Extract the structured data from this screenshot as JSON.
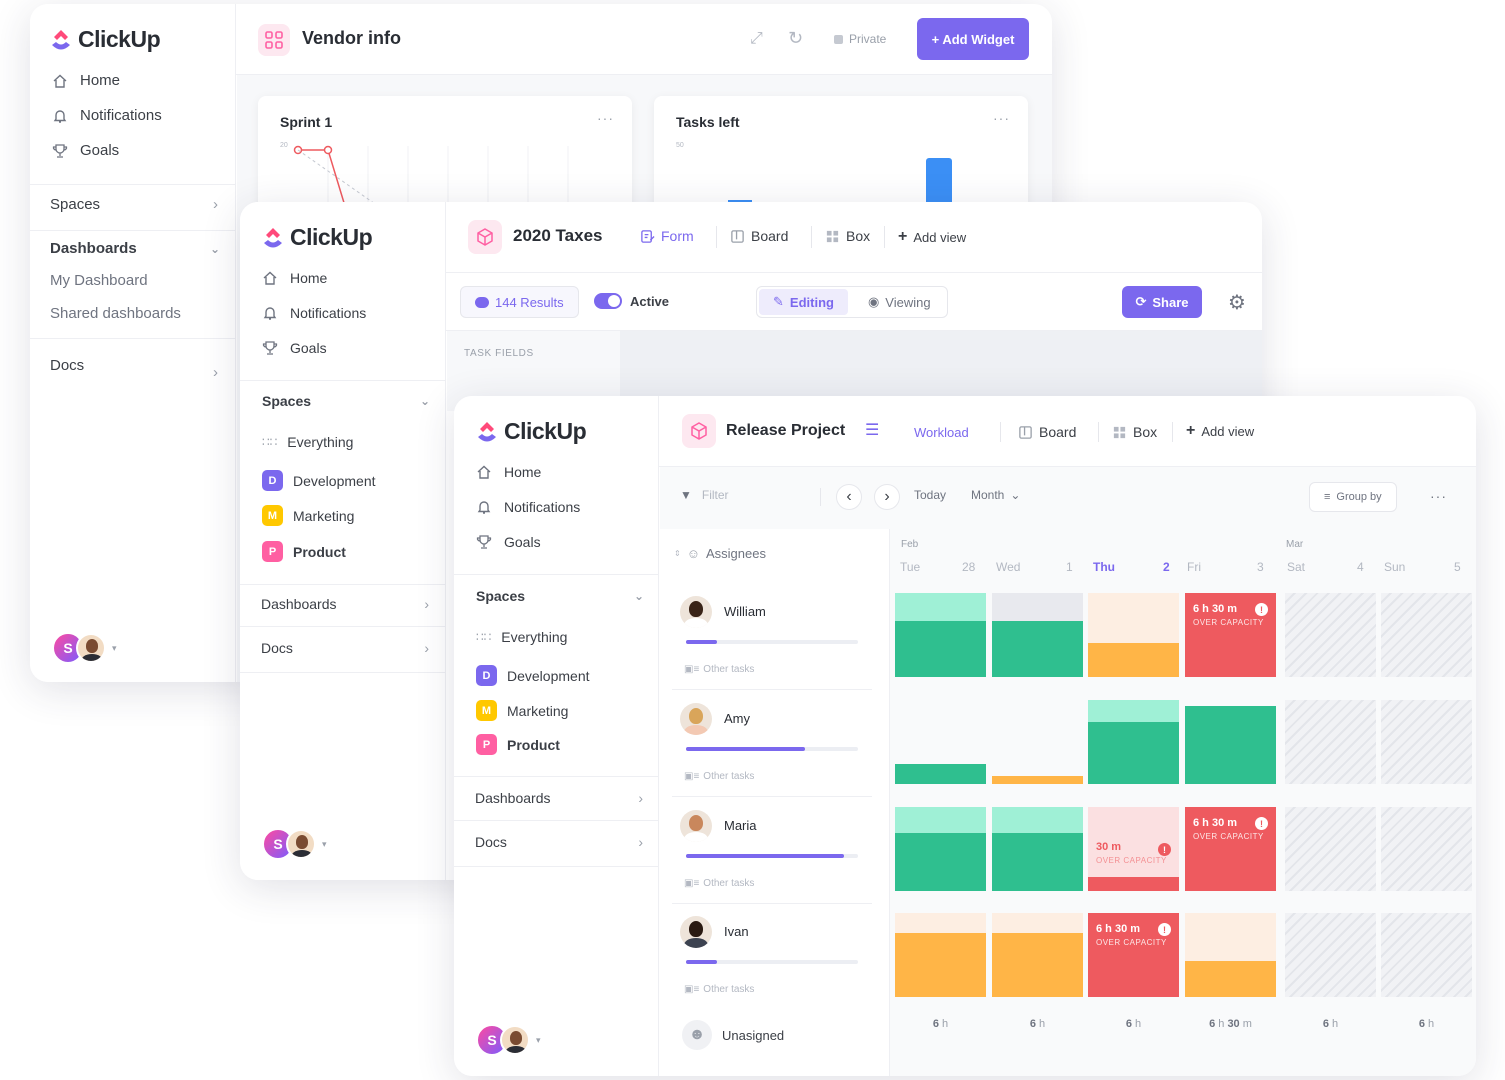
{
  "brand": "ClickUp",
  "nav": {
    "home": "Home",
    "notifications": "Notifications",
    "goals": "Goals"
  },
  "spaces_label": "Spaces",
  "dashboards_label": "Dashboards",
  "docs_label": "Docs",
  "dash_items": {
    "my": "My Dashboard",
    "shared": "Shared dashboards"
  },
  "spaces": {
    "everything": "Everything",
    "development": "Development",
    "marketing": "Marketing",
    "product": "Product",
    "dev_letter": "D",
    "mkt_letter": "M",
    "prod_letter": "P"
  },
  "avatar_letter": "S",
  "vendor": {
    "title": "Vendor info",
    "private": "Private",
    "add_widget": "+ Add Widget",
    "sprint_title": "Sprint 1",
    "sprint_tick": "20",
    "tasks_title": "Tasks left",
    "tasks_tick": "50",
    "dots": "···"
  },
  "taxes": {
    "title": "2020 Taxes",
    "tabs": {
      "form": "Form",
      "board": "Board",
      "box": "Box",
      "add_view": "Add view"
    },
    "results": "144 Results",
    "active": "Active",
    "editing": "Editing",
    "viewing": "Viewing",
    "share": "Share",
    "task_fields": "TASK FIELDS"
  },
  "release": {
    "title": "Release Project",
    "tabs": {
      "workload": "Workload",
      "board": "Board",
      "box": "Box",
      "add_view": "Add view"
    },
    "filter": "Filter",
    "today": "Today",
    "month": "Month",
    "group_by": "Group by",
    "assignees": "Assignees",
    "months": {
      "feb": "Feb",
      "mar": "Mar"
    },
    "days": [
      {
        "name": "Tue",
        "num": "28"
      },
      {
        "name": "Wed",
        "num": "1"
      },
      {
        "name": "Thu",
        "num": "2"
      },
      {
        "name": "Fri",
        "num": "3"
      },
      {
        "name": "Sat",
        "num": "4"
      },
      {
        "name": "Sun",
        "num": "5"
      }
    ],
    "people": [
      {
        "name": "William",
        "load": 0.18,
        "other": "Other tasks"
      },
      {
        "name": "Amy",
        "load": 0.69,
        "other": "Other tasks"
      },
      {
        "name": "Maria",
        "load": 0.92,
        "other": "Other tasks"
      },
      {
        "name": "Ivan",
        "load": 0.18,
        "other": "Other tasks"
      }
    ],
    "unassigned": "Unasigned",
    "over_capacity": "OVER CAPACITY",
    "over_a": "6 h 30 m",
    "over_b": "30 m",
    "info_glyph": "!",
    "totals": {
      "h": "6",
      "m": "30",
      "h_unit": "h",
      "m_unit": "m"
    }
  }
}
